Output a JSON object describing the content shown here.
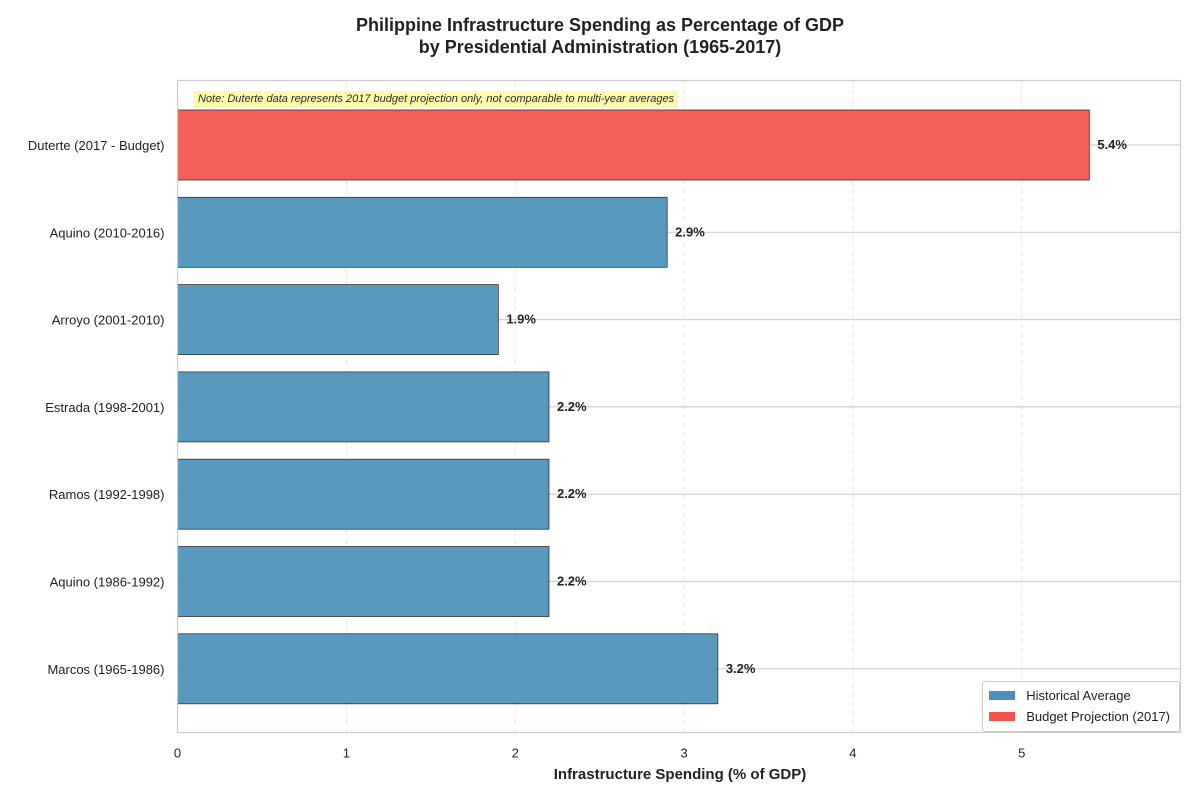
{
  "chart_data": {
    "type": "bar",
    "orientation": "horizontal",
    "title": [
      "Philippine Infrastructure Spending as Percentage of GDP",
      "by Presidential Administration (1965-2017)"
    ],
    "xlabel": "Infrastructure Spending (% of GDP)",
    "ylabel": "",
    "xlim": [
      0,
      5.94
    ],
    "xticks": [
      0,
      1,
      2,
      3,
      4,
      5
    ],
    "categories": [
      "Duterte (2017 - Budget)",
      "Aquino (2010-2016)",
      "Arroyo (2001-2010)",
      "Estrada (1998-2001)",
      "Ramos (1992-1998)",
      "Aquino (1986-1992)",
      "Marcos (1965-1986)"
    ],
    "values": [
      5.4,
      2.9,
      1.9,
      2.2,
      2.2,
      2.2,
      3.2
    ],
    "value_labels": [
      "5.4%",
      "2.9%",
      "1.9%",
      "2.2%",
      "2.2%",
      "2.2%",
      "3.2%"
    ],
    "bar_groups": [
      "Budget Projection (2017)",
      "Historical Average",
      "Historical Average",
      "Historical Average",
      "Historical Average",
      "Historical Average",
      "Historical Average"
    ],
    "colors": {
      "Historical Average": "#4a90b8",
      "Budget Projection (2017)": "#f2534b"
    },
    "grid": true,
    "legend": {
      "placement": "bottom-right",
      "items": [
        {
          "label": "Historical Average",
          "color": "#4a90b8"
        },
        {
          "label": "Budget Projection (2017)",
          "color": "#f2534b"
        }
      ]
    },
    "annotation": "Note: Duterte data represents 2017 budget projection only, not comparable to multi-year averages"
  }
}
